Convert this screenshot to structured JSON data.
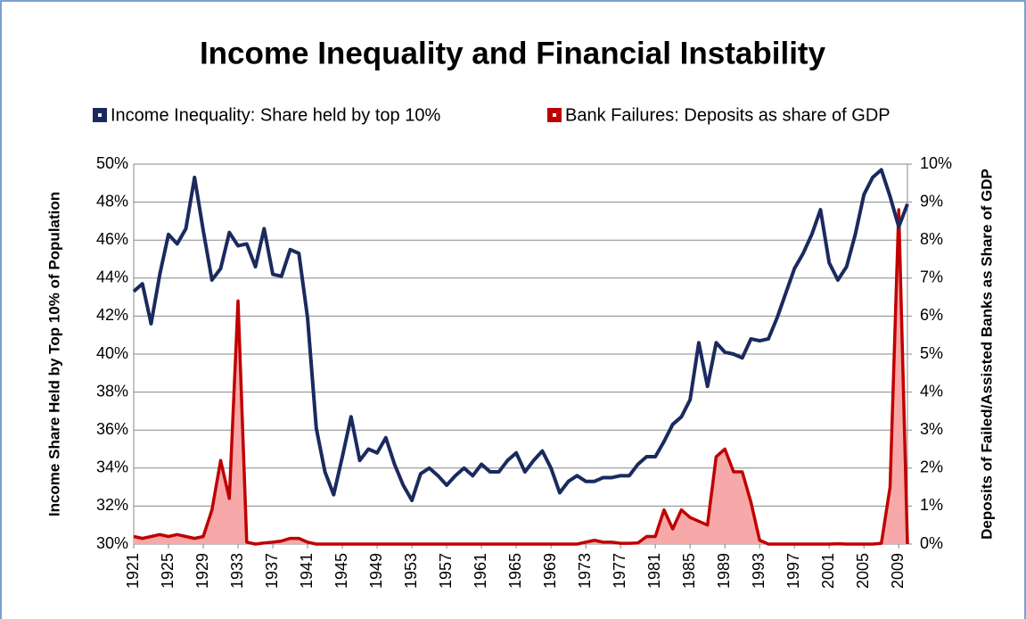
{
  "chart_data": {
    "type": "line",
    "title": "Income Inequality and Financial Instability",
    "y_label": "Income Share Held by Top 10% of Population",
    "y2_label": "Deposits of Failed/Assisted Banks as Share of GDP",
    "x": [
      1921,
      1922,
      1923,
      1924,
      1925,
      1926,
      1927,
      1928,
      1929,
      1930,
      1931,
      1932,
      1933,
      1934,
      1935,
      1936,
      1937,
      1938,
      1939,
      1940,
      1941,
      1942,
      1943,
      1944,
      1945,
      1946,
      1947,
      1948,
      1949,
      1950,
      1951,
      1952,
      1953,
      1954,
      1955,
      1956,
      1957,
      1958,
      1959,
      1960,
      1961,
      1962,
      1963,
      1964,
      1965,
      1966,
      1967,
      1968,
      1969,
      1970,
      1971,
      1972,
      1973,
      1974,
      1975,
      1976,
      1977,
      1978,
      1979,
      1980,
      1981,
      1982,
      1983,
      1984,
      1985,
      1986,
      1987,
      1988,
      1989,
      1990,
      1991,
      1992,
      1993,
      1994,
      1995,
      1996,
      1997,
      1998,
      1999,
      2000,
      2001,
      2002,
      2003,
      2004,
      2005,
      2006,
      2007,
      2008,
      2009,
      2010
    ],
    "xlim": [
      1921,
      2010
    ],
    "xticks": [
      1921,
      1925,
      1929,
      1933,
      1937,
      1941,
      1945,
      1949,
      1953,
      1957,
      1961,
      1965,
      1969,
      1973,
      1977,
      1981,
      1985,
      1989,
      1993,
      1997,
      2001,
      2005,
      2009
    ],
    "ylim": [
      30,
      50
    ],
    "yticks": [
      {
        "value": 30,
        "label": "30%"
      },
      {
        "value": 32,
        "label": "32%"
      },
      {
        "value": 34,
        "label": "34%"
      },
      {
        "value": 36,
        "label": "36%"
      },
      {
        "value": 38,
        "label": "38%"
      },
      {
        "value": 40,
        "label": "40%"
      },
      {
        "value": 42,
        "label": "42%"
      },
      {
        "value": 44,
        "label": "44%"
      },
      {
        "value": 46,
        "label": "46%"
      },
      {
        "value": 48,
        "label": "48%"
      },
      {
        "value": 50,
        "label": "50%"
      }
    ],
    "y2lim": [
      0,
      10
    ],
    "y2ticks": [
      {
        "value": 0,
        "label": "0%"
      },
      {
        "value": 1,
        "label": "1%"
      },
      {
        "value": 2,
        "label": "2%"
      },
      {
        "value": 3,
        "label": "3%"
      },
      {
        "value": 4,
        "label": "4%"
      },
      {
        "value": 5,
        "label": "5%"
      },
      {
        "value": 6,
        "label": "6%"
      },
      {
        "value": 7,
        "label": "7%"
      },
      {
        "value": 8,
        "label": "8%"
      },
      {
        "value": 9,
        "label": "9%"
      },
      {
        "value": 10,
        "label": "10%"
      }
    ],
    "grid": true,
    "legend": "top",
    "series": [
      {
        "name": "Income Inequality: Share held by top 10%",
        "type": "line",
        "color": "#1b2a5e",
        "values": [
          43.3,
          43.7,
          41.6,
          44.2,
          46.3,
          45.8,
          46.6,
          49.3,
          46.5,
          43.9,
          44.5,
          46.4,
          45.7,
          45.8,
          44.6,
          46.6,
          44.2,
          44.1,
          45.5,
          45.3,
          41.9,
          36.1,
          33.8,
          32.6,
          34.6,
          36.7,
          34.4,
          35.0,
          34.8,
          35.6,
          34.2,
          33.1,
          32.3,
          33.7,
          34.0,
          33.6,
          33.1,
          33.6,
          34.0,
          33.6,
          34.2,
          33.8,
          33.8,
          34.4,
          34.8,
          33.8,
          34.4,
          34.9,
          34.0,
          32.7,
          33.3,
          33.6,
          33.3,
          33.3,
          33.5,
          33.5,
          33.6,
          33.6,
          34.2,
          34.6,
          34.6,
          35.4,
          36.3,
          36.7,
          37.6,
          40.6,
          38.3,
          40.6,
          40.1,
          40.0,
          39.8,
          40.8,
          40.7,
          40.8,
          41.9,
          43.2,
          44.5,
          45.3,
          46.3,
          47.6,
          44.8,
          43.9,
          44.6,
          46.3,
          48.4,
          49.3,
          49.7,
          48.3,
          46.7,
          47.9
        ]
      },
      {
        "name": "Bank Failures: Deposits as share of GDP",
        "type": "area",
        "axis": "y2",
        "color": "#c00000",
        "fill": "#f7a8a8",
        "values": [
          0.2,
          0.15,
          0.2,
          0.25,
          0.2,
          0.25,
          0.2,
          0.15,
          0.2,
          0.9,
          2.2,
          1.2,
          6.4,
          0.05,
          0,
          0.03,
          0.05,
          0.08,
          0.15,
          0.15,
          0.05,
          0,
          0,
          0,
          0,
          0,
          0,
          0,
          0,
          0,
          0,
          0,
          0,
          0,
          0,
          0,
          0,
          0,
          0,
          0,
          0,
          0,
          0,
          0,
          0,
          0,
          0,
          0,
          0,
          0,
          0,
          0,
          0.05,
          0.1,
          0.05,
          0.05,
          0.02,
          0.02,
          0.03,
          0.2,
          0.2,
          0.9,
          0.4,
          0.9,
          0.7,
          0.6,
          0.5,
          2.3,
          2.5,
          1.9,
          1.9,
          1.1,
          0.1,
          0,
          0,
          0,
          0,
          0,
          0,
          0,
          0,
          0.01,
          0,
          0,
          0,
          0,
          0.02,
          1.5,
          8.8,
          0
        ]
      }
    ]
  }
}
